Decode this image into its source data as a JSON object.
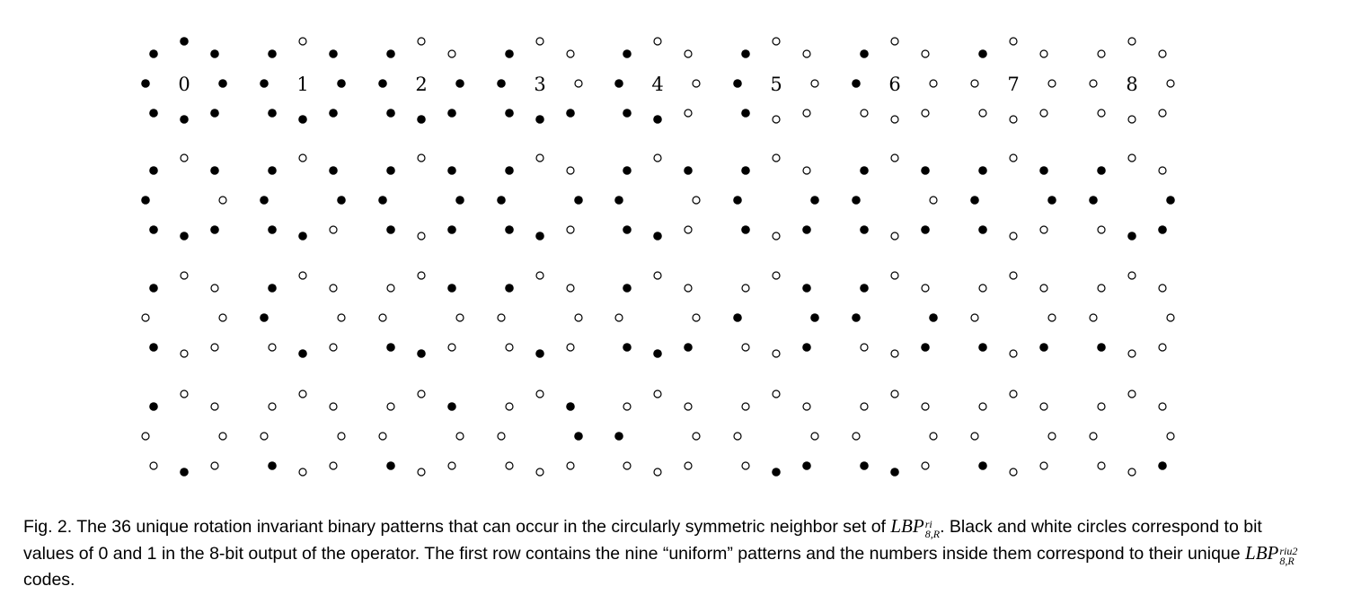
{
  "figure": {
    "description_codes": [
      "0",
      "1",
      "2",
      "3",
      "4",
      "5",
      "6",
      "7",
      "8"
    ],
    "rows": [
      {
        "patterns": [
          {
            "code": "0",
            "bits": [
              0,
              0,
              0,
              0,
              0,
              0,
              0,
              0
            ]
          },
          {
            "code": "1",
            "bits": [
              1,
              0,
              0,
              0,
              0,
              0,
              0,
              0
            ]
          },
          {
            "code": "2",
            "bits": [
              1,
              1,
              0,
              0,
              0,
              0,
              0,
              0
            ]
          },
          {
            "code": "3",
            "bits": [
              1,
              1,
              1,
              0,
              0,
              0,
              0,
              0
            ]
          },
          {
            "code": "4",
            "bits": [
              1,
              1,
              1,
              1,
              0,
              0,
              0,
              0
            ]
          },
          {
            "code": "5",
            "bits": [
              1,
              1,
              1,
              1,
              1,
              0,
              0,
              0
            ]
          },
          {
            "code": "6",
            "bits": [
              1,
              1,
              1,
              1,
              1,
              1,
              0,
              0
            ]
          },
          {
            "code": "7",
            "bits": [
              1,
              1,
              1,
              1,
              1,
              1,
              1,
              0
            ]
          },
          {
            "code": "8",
            "bits": [
              1,
              1,
              1,
              1,
              1,
              1,
              1,
              1
            ]
          }
        ]
      },
      {
        "patterns": [
          {
            "bits": [
              1,
              0,
              1,
              0,
              0,
              0,
              0,
              0
            ]
          },
          {
            "bits": [
              1,
              0,
              0,
              1,
              0,
              0,
              0,
              0
            ]
          },
          {
            "bits": [
              1,
              0,
              0,
              0,
              1,
              0,
              0,
              0
            ]
          },
          {
            "bits": [
              1,
              1,
              0,
              1,
              0,
              0,
              0,
              0
            ]
          },
          {
            "bits": [
              1,
              0,
              1,
              1,
              0,
              0,
              0,
              0
            ]
          },
          {
            "bits": [
              1,
              1,
              0,
              0,
              1,
              0,
              0,
              0
            ]
          },
          {
            "bits": [
              1,
              0,
              1,
              0,
              1,
              0,
              0,
              0
            ]
          },
          {
            "bits": [
              1,
              0,
              0,
              1,
              1,
              0,
              0,
              0
            ]
          },
          {
            "bits": [
              1,
              1,
              0,
              0,
              0,
              1,
              0,
              0
            ]
          }
        ]
      },
      {
        "patterns": [
          {
            "bits": [
              1,
              1,
              1,
              1,
              1,
              0,
              1,
              0
            ]
          },
          {
            "bits": [
              1,
              1,
              1,
              1,
              0,
              1,
              0,
              0
            ]
          },
          {
            "bits": [
              1,
              0,
              1,
              1,
              0,
              0,
              1,
              1
            ]
          },
          {
            "bits": [
              1,
              1,
              1,
              1,
              0,
              1,
              1,
              0
            ]
          },
          {
            "bits": [
              1,
              1,
              1,
              0,
              0,
              0,
              1,
              0
            ]
          },
          {
            "bits": [
              1,
              0,
              0,
              0,
              1,
              1,
              0,
              1
            ]
          },
          {
            "bits": [
              1,
              1,
              0,
              0,
              1,
              1,
              0,
              0
            ]
          },
          {
            "bits": [
              1,
              1,
              1,
              0,
              1,
              0,
              1,
              1
            ]
          },
          {
            "bits": [
              1,
              1,
              1,
              1,
              1,
              0,
              1,
              1
            ]
          }
        ]
      },
      {
        "patterns": [
          {
            "bits": [
              1,
              1,
              1,
              1,
              0,
              1,
              1,
              0
            ]
          },
          {
            "bits": [
              1,
              1,
              1,
              1,
              1,
              0,
              1,
              1
            ]
          },
          {
            "bits": [
              1,
              0,
              1,
              1,
              1,
              0,
              1,
              1
            ]
          },
          {
            "bits": [
              1,
              0,
              0,
              1,
              1,
              1,
              1,
              1
            ]
          },
          {
            "bits": [
              1,
              1,
              1,
              1,
              1,
              1,
              0,
              1
            ]
          },
          {
            "bits": [
              1,
              1,
              1,
              0,
              0,
              1,
              1,
              1
            ]
          },
          {
            "bits": [
              1,
              1,
              1,
              1,
              0,
              0,
              1,
              1
            ]
          },
          {
            "bits": [
              1,
              1,
              1,
              1,
              1,
              0,
              1,
              1
            ]
          },
          {
            "bits": [
              1,
              1,
              1,
              0,
              1,
              1,
              1,
              1
            ]
          }
        ]
      }
    ]
  },
  "caption": {
    "lead": "Fig. 2. The 36 unique rotation invariant binary patterns that can occur in the circularly symmetric neighbor set of ",
    "math1_base": "LBP",
    "math1_sup": "ri",
    "math1_sub": "8,R",
    "mid": ". Black and white circles correspond to bit values of 0 and 1 in the 8-bit output of the operator. The first row contains the nine “uniform” patterns and the numbers inside them correspond to their unique ",
    "math2_base": "LBP",
    "math2_sup": "riu2",
    "math2_sub": "8,R",
    "tail": " codes."
  }
}
